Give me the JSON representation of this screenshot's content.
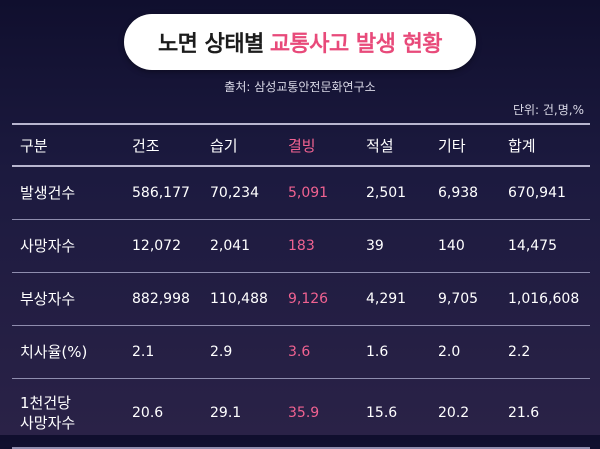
{
  "title": {
    "prefix": "노면 상태별",
    "accent": "교통사고 발생 현황",
    "accent_color": "#e84a7a"
  },
  "source": "출처: 삼성교통안전문화연구소",
  "unit": "단위: 건,명,%",
  "table": {
    "headers": [
      "구분",
      "건조",
      "습기",
      "결빙",
      "적설",
      "기타",
      "합계"
    ],
    "highlight_column": "결빙",
    "rows": [
      {
        "label": "발생건수",
        "values": [
          "586,177",
          "70,234",
          "5,091",
          "2,501",
          "6,938",
          "670,941"
        ]
      },
      {
        "label": "사망자수",
        "values": [
          "12,072",
          "2,041",
          "183",
          "39",
          "140",
          "14,475"
        ]
      },
      {
        "label": "부상자수",
        "values": [
          "882,998",
          "110,488",
          "9,126",
          "4,291",
          "9,705",
          "1,016,608"
        ]
      },
      {
        "label": "치사율(%)",
        "values": [
          "2.1",
          "2.9",
          "3.6",
          "1.6",
          "2.0",
          "2.2"
        ]
      },
      {
        "label": "1천건당\n사망자수",
        "values": [
          "20.6",
          "29.1",
          "35.9",
          "15.6",
          "20.2",
          "21.6"
        ]
      }
    ]
  }
}
